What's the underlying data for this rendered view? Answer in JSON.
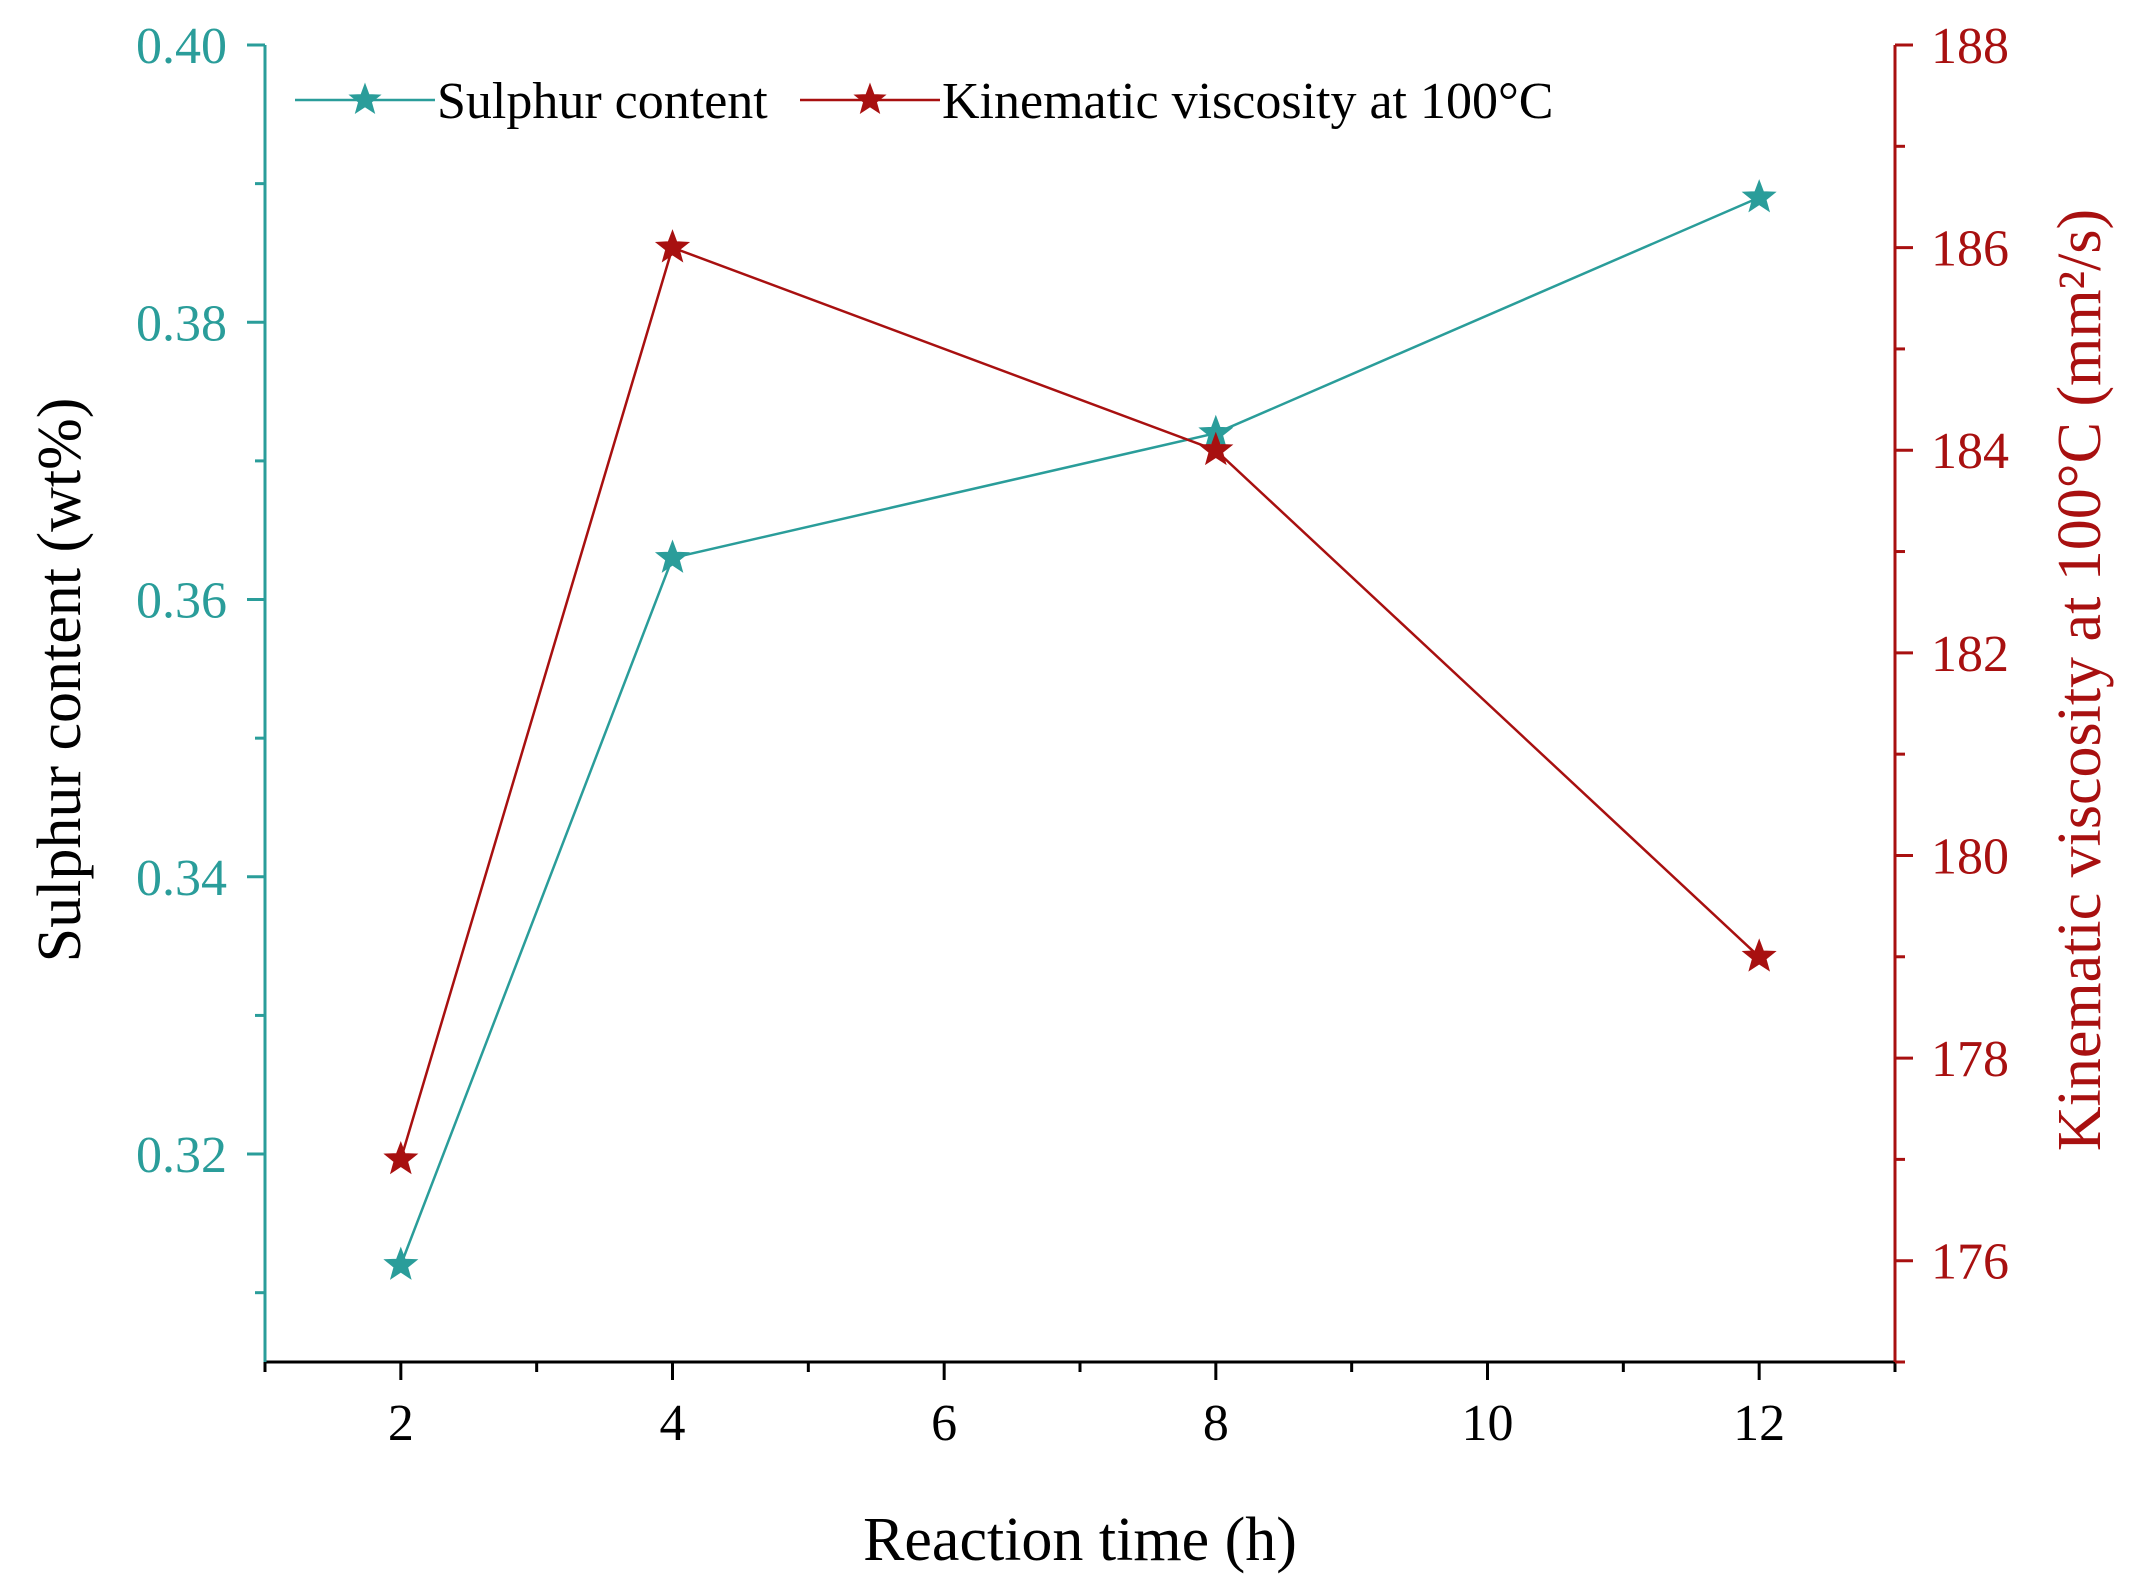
{
  "colors": {
    "left_axis": "#2a9d9a",
    "right_axis": "#a81010",
    "x_axis": "#000000"
  },
  "chart_data": {
    "type": "line",
    "xlabel": "Reaction time (h)",
    "ylabel_left": "Sulphur content (wt%)",
    "ylabel_right": "Kinematic viscosity at 100°C (mm²/s)",
    "xlim": [
      1,
      13
    ],
    "x_ticks": [
      2,
      4,
      6,
      8,
      10,
      12
    ],
    "ylim_left": [
      0.305,
      0.4
    ],
    "y_ticks_left": [
      "0.32",
      "0.34",
      "0.36",
      "0.38",
      "0.40"
    ],
    "ylim_right": [
      175,
      188
    ],
    "y_ticks_right": [
      "176",
      "178",
      "180",
      "182",
      "184",
      "186",
      "188"
    ],
    "series": [
      {
        "name": "Sulphur content",
        "axis": "left",
        "marker": "star",
        "x": [
          2,
          4,
          8,
          12
        ],
        "values": [
          0.312,
          0.363,
          0.372,
          0.389
        ]
      },
      {
        "name": "Kinematic viscosity at 100°C",
        "axis": "right",
        "marker": "star",
        "x": [
          2,
          4,
          8,
          12
        ],
        "values": [
          177,
          186,
          184,
          179
        ]
      }
    ]
  }
}
